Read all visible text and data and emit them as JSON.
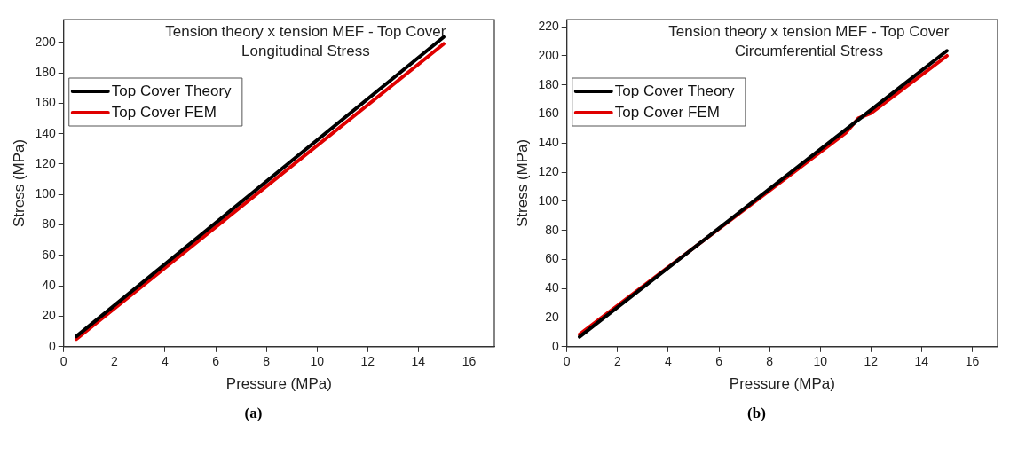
{
  "chart_data": [
    {
      "type": "line",
      "title": "Tension theory x tension MEF - Top Cover",
      "subtitle": "Longitudinal Stress",
      "xlabel": "Pressure (MPa)",
      "ylabel": "Stress (MPa)",
      "annotations": [
        "(a)"
      ],
      "xlim": [
        0,
        17
      ],
      "xticks": [
        0,
        2,
        4,
        6,
        8,
        10,
        12,
        14,
        16
      ],
      "ylim": [
        0,
        215
      ],
      "yticks": [
        0,
        20,
        40,
        60,
        80,
        100,
        120,
        140,
        160,
        180,
        200
      ],
      "grid": false,
      "legend": "top left",
      "marker": "none",
      "line_style": "solid",
      "series": [
        {
          "name": "Top Cover Theory",
          "color": "#000000",
          "x": [
            0.5,
            15
          ],
          "values": [
            6.8,
            203.5
          ]
        },
        {
          "name": "Top Cover FEM",
          "color": "#e00000",
          "x": [
            0.5,
            15
          ],
          "values": [
            5,
            199
          ]
        }
      ]
    },
    {
      "type": "line",
      "title": "Tension theory x tension MEF - Top Cover",
      "subtitle": "Circumferential Stress",
      "xlabel": "Pressure (MPa)",
      "ylabel": "Stress (MPa)",
      "annotations": [
        "(b)"
      ],
      "xlim": [
        0,
        17
      ],
      "xticks": [
        0,
        2,
        4,
        6,
        8,
        10,
        12,
        14,
        16
      ],
      "ylim": [
        0,
        225
      ],
      "yticks": [
        0,
        20,
        40,
        60,
        80,
        100,
        120,
        140,
        160,
        180,
        200,
        220
      ],
      "grid": false,
      "legend": "top left",
      "marker": "none",
      "line_style": "solid",
      "series": [
        {
          "name": "Top Cover Theory",
          "color": "#000000",
          "x": [
            0.5,
            15
          ],
          "values": [
            6.8,
            203.5
          ]
        },
        {
          "name": "Top Cover FEM",
          "color": "#e00000",
          "x": [
            0.5,
            11,
            11.5,
            12,
            15
          ],
          "values": [
            8.5,
            147,
            157,
            160.5,
            200
          ]
        }
      ]
    }
  ]
}
